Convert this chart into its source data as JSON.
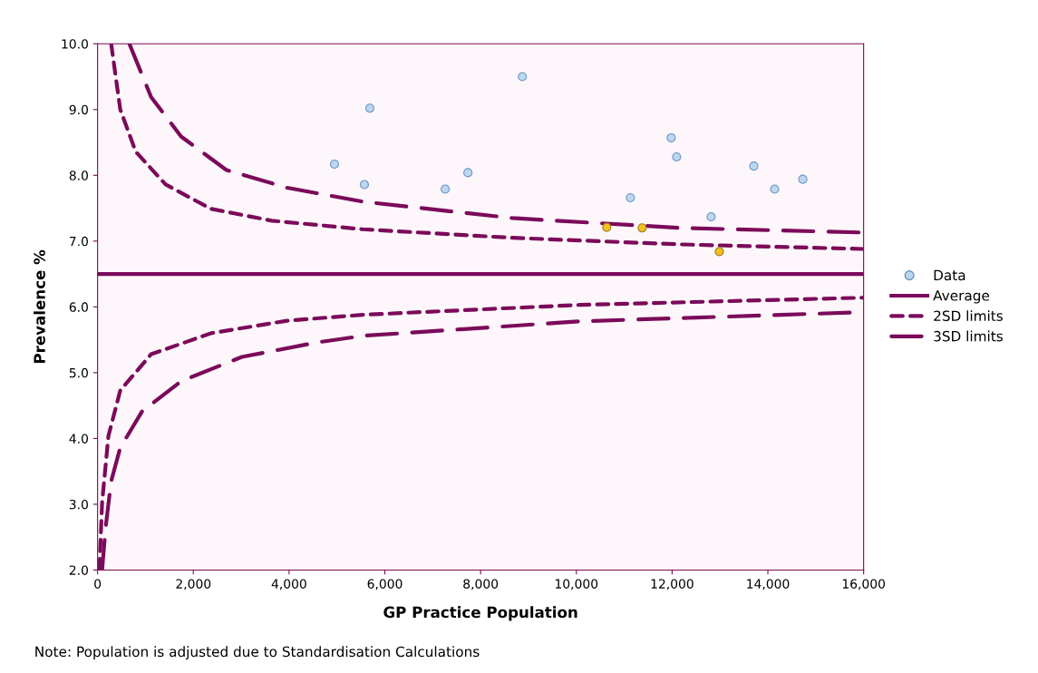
{
  "chart_data": {
    "type": "scatter",
    "xlabel": "GP Practice Population",
    "ylabel": "Prevalence %",
    "xlim": [
      0,
      16000
    ],
    "ylim": [
      2.0,
      10.0
    ],
    "xticks": [
      0,
      {
        "value": 2000,
        "label": "2,000"
      },
      {
        "value": 4000,
        "label": "4,000"
      },
      {
        "value": 6000,
        "label": "6,000"
      },
      {
        "value": 8000,
        "label": "8,000"
      },
      {
        "value": 10000,
        "label": "10,000"
      },
      {
        "value": 12000,
        "label": "12,000"
      },
      {
        "value": 14000,
        "label": "14,000"
      },
      {
        "value": 16000,
        "label": "16,000"
      }
    ],
    "yticks": [
      {
        "value": 2,
        "label": "2.0"
      },
      {
        "value": 3,
        "label": "3.0"
      },
      {
        "value": 4,
        "label": "4.0"
      },
      {
        "value": 5,
        "label": "5.0"
      },
      {
        "value": 6,
        "label": "6.0"
      },
      {
        "value": 7,
        "label": "7.0"
      },
      {
        "value": 8,
        "label": "8.0"
      },
      {
        "value": 9,
        "label": "9.0"
      },
      {
        "value": 10,
        "label": "10.0"
      }
    ],
    "grid": false,
    "legend": "right",
    "annotations": [
      "Note: Population is adjusted due to Standardisation Calculations"
    ],
    "series": [
      {
        "name": "Data",
        "type": "scatter",
        "marker": "circle",
        "color": "#bdd7ee",
        "x": [
          4948,
          5573,
          5687,
          7261,
          7735,
          8872,
          11128,
          11981,
          12095,
          12815,
          13706,
          14142,
          14730
        ],
        "values": [
          8.17,
          7.86,
          9.02,
          7.79,
          8.04,
          9.5,
          7.66,
          8.57,
          8.28,
          7.37,
          8.14,
          7.79,
          7.94
        ]
      },
      {
        "type": "scatter",
        "marker": "circle",
        "color": "#f0c020",
        "x": [
          10635,
          11374,
          12986
        ],
        "values": [
          7.21,
          7.2,
          6.84
        ]
      },
      {
        "name": "Average",
        "type": "line",
        "line_style": "solid",
        "color": "#7b0a5a",
        "x": [
          0,
          16000
        ],
        "values": [
          6.5,
          6.5
        ]
      },
      {
        "name": "2SD limits",
        "type": "line",
        "line_style": "dotted",
        "color": "#7b0a5a",
        "x": [
          284,
          474,
          796,
          1422,
          2370,
          3640,
          5536,
          8664,
          12170,
          16000
        ],
        "values": [
          10.0,
          9.0,
          8.36,
          7.86,
          7.49,
          7.31,
          7.18,
          7.05,
          6.95,
          6.88
        ]
      },
      {
        "type": "line",
        "line_style": "dotted",
        "color": "#7b0a5a",
        "x": [
          38,
          95,
          227,
          474,
          1118,
          2370,
          3962,
          5536,
          10066,
          16000
        ],
        "values": [
          2.0,
          3.03,
          4.04,
          4.73,
          5.28,
          5.6,
          5.79,
          5.88,
          6.03,
          6.14
        ]
      },
      {
        "name": "3SD limits",
        "type": "line",
        "line_style": "dashed",
        "color": "#7b0a5a",
        "x": [
          664,
          1118,
          1744,
          2692,
          3962,
          5536,
          8664,
          12170,
          16000
        ],
        "values": [
          10.0,
          9.19,
          8.59,
          8.08,
          7.81,
          7.6,
          7.35,
          7.2,
          7.13
        ]
      },
      {
        "type": "line",
        "line_style": "dashed",
        "color": "#7b0a5a",
        "x": [
          95,
          170,
          284,
          474,
          929,
          1744,
          3014,
          4588,
          5536,
          10066,
          16000
        ],
        "values": [
          2.0,
          2.66,
          3.35,
          3.86,
          4.41,
          4.87,
          5.24,
          5.46,
          5.56,
          5.78,
          5.92
        ]
      }
    ]
  }
}
